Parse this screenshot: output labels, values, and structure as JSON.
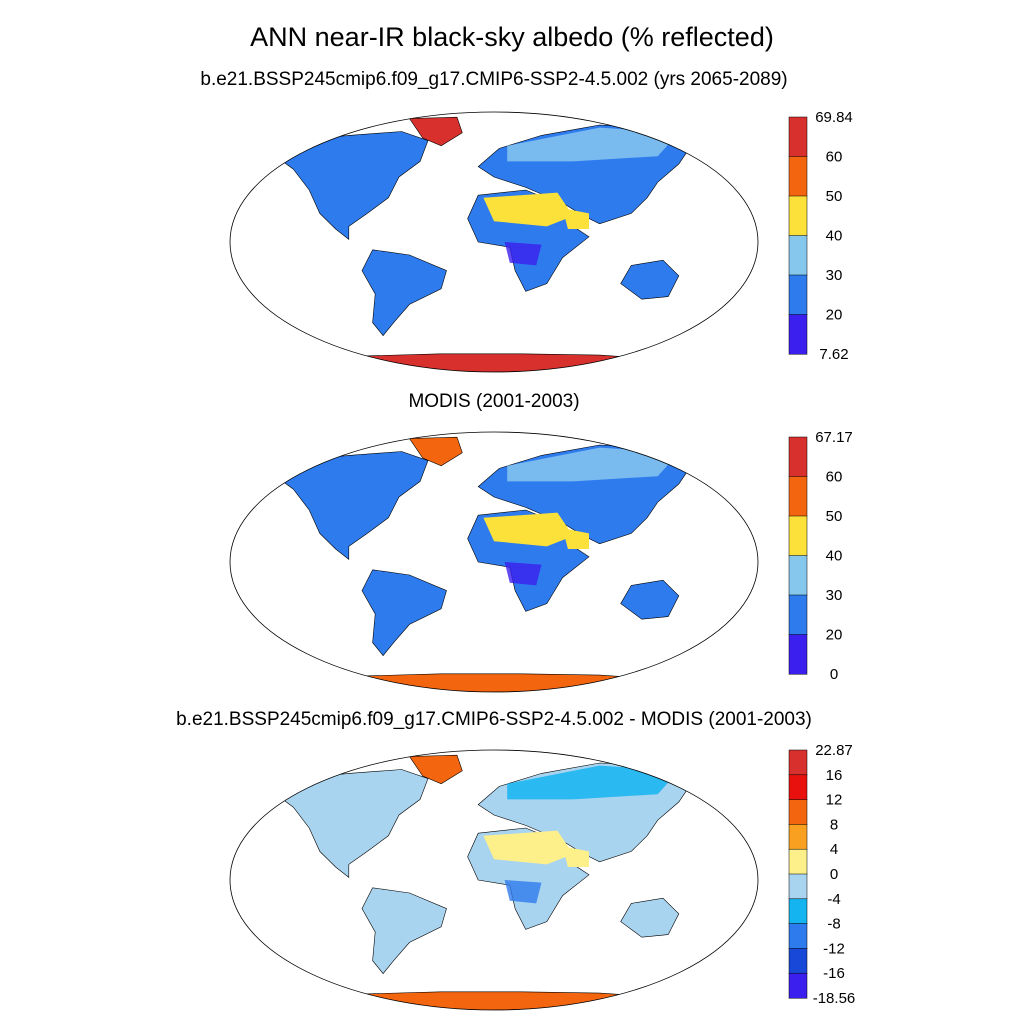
{
  "title": "ANN near-IR black-sky albedo (% reflected)",
  "panels": [
    {
      "subtitle": "b.e21.BSSP245cmip6.f09_g17.CMIP6-SSP2-4.5.002 (yrs 2065-2089)",
      "colorbar": {
        "labels": [
          "69.84",
          "60",
          "50",
          "40",
          "30",
          "20",
          "7.62"
        ],
        "colors": [
          "#d7302d",
          "#f4650f",
          "#fbe13a",
          "#86c7ee",
          "#2e7bee",
          "#3b1fee"
        ]
      },
      "fill": {
        "land": "#2e7bee",
        "desert": "#fbe13a",
        "ice": "#d7302d",
        "snow": "#86c7ee",
        "deep": "#3b1fee"
      }
    },
    {
      "subtitle": "MODIS (2001-2003)",
      "colorbar": {
        "labels": [
          "67.17",
          "60",
          "50",
          "40",
          "30",
          "20",
          "0"
        ],
        "colors": [
          "#d7302d",
          "#f4650f",
          "#fbe13a",
          "#86c7ee",
          "#2e7bee",
          "#3b1fee"
        ]
      },
      "fill": {
        "land": "#2e7bee",
        "desert": "#fbe13a",
        "ice": "#f4650f",
        "snow": "#86c7ee",
        "deep": "#3b1fee"
      }
    },
    {
      "subtitle": "b.e21.BSSP245cmip6.f09_g17.CMIP6-SSP2-4.5.002 - MODIS (2001-2003)",
      "colorbar": {
        "labels": [
          "22.87",
          "16",
          "12",
          "8",
          "4",
          "0",
          "-4",
          "-8",
          "-12",
          "-16",
          "-18.56"
        ],
        "colors": [
          "#d7302d",
          "#e8110e",
          "#f4650f",
          "#f9a020",
          "#fdf08a",
          "#a9d4f0",
          "#14b4f0",
          "#2e7bee",
          "#1848d8",
          "#3b1fee"
        ]
      },
      "fill": {
        "land": "#a9d4f0",
        "desert": "#fdf08a",
        "ice": "#f4650f",
        "snow": "#14b4f0",
        "deep": "#2e7bee"
      }
    }
  ]
}
